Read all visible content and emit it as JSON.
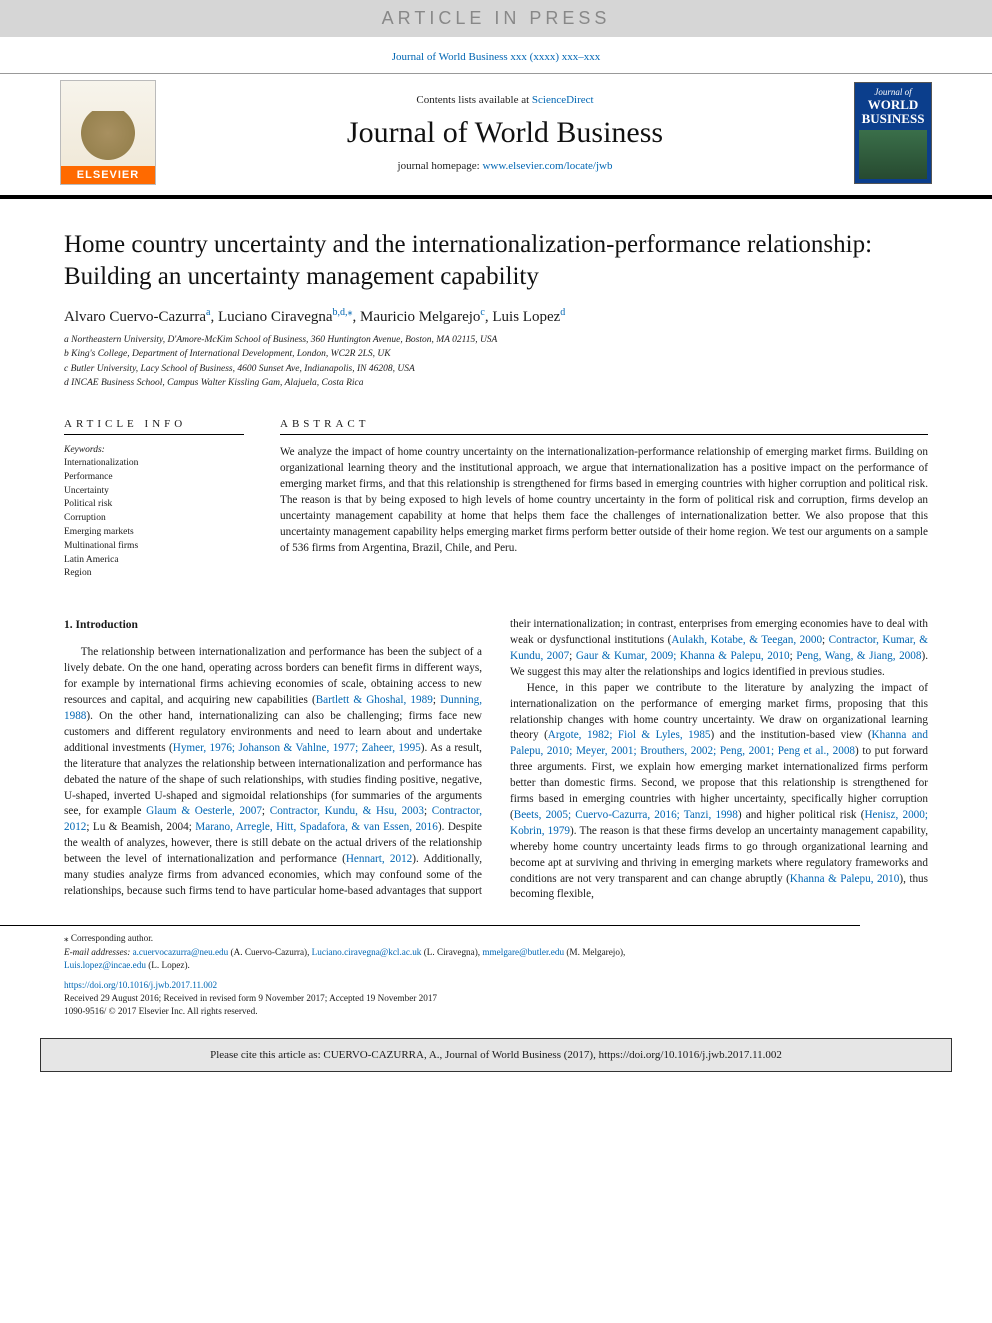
{
  "banner": {
    "article_in_press": "ARTICLE IN PRESS",
    "journal_ref_prefix": "Journal of World Business xxx (xxxx) xxx–xxx"
  },
  "masthead": {
    "contents_prefix": "Contents lists available at ",
    "contents_link": "ScienceDirect",
    "journal_title": "Journal of World Business",
    "homepage_prefix": "journal homepage: ",
    "homepage_url": "www.elsevier.com/locate/jwb",
    "elsevier_label": "ELSEVIER",
    "cover_word1": "Journal of",
    "cover_word2": "WORLD",
    "cover_word3": "BUSINESS"
  },
  "article": {
    "title": "Home country uncertainty and the internationalization-performance relationship: Building an uncertainty management capability",
    "authors_html": "Alvaro Cuervo-Cazurra",
    "author1": {
      "name": "Alvaro Cuervo-Cazurra",
      "aff": "a"
    },
    "author2": {
      "name": "Luciano Ciravegna",
      "aff": "b,d,",
      "corr": "⁎"
    },
    "author3": {
      "name": "Mauricio Melgarejo",
      "aff": "c"
    },
    "author4": {
      "name": "Luis Lopez",
      "aff": "d"
    },
    "affiliations": {
      "a": "a Northeastern University, D'Amore-McKim School of Business, 360 Huntington Avenue, Boston, MA 02115, USA",
      "b": "b King's College, Department of International Development, London, WC2R 2LS, UK",
      "c": "c Butler University, Lacy School of Business, 4600 Sunset Ave, Indianapolis, IN 46208, USA",
      "d": "d INCAE Business School, Campus Walter Kissling Gam, Alajuela, Costa Rica"
    }
  },
  "info": {
    "heading": "ARTICLE INFO",
    "keywords_label": "Keywords:",
    "keywords": [
      "Internationalization",
      "Performance",
      "Uncertainty",
      "Political risk",
      "Corruption",
      "Emerging markets",
      "Multinational firms",
      "Latin America",
      "Region"
    ]
  },
  "abstract": {
    "heading": "ABSTRACT",
    "text": "We analyze the impact of home country uncertainty on the internationalization-performance relationship of emerging market firms. Building on organizational learning theory and the institutional approach, we argue that internationalization has a positive impact on the performance of emerging market firms, and that this relationship is strengthened for firms based in emerging countries with higher corruption and political risk. The reason is that by being exposed to high levels of home country uncertainty in the form of political risk and corruption, firms develop an uncertainty management capability at home that helps them face the challenges of internationalization better. We also propose that this uncertainty management capability helps emerging market firms perform better outside of their home region. We test our arguments on a sample of 536 firms from Argentina, Brazil, Chile, and Peru."
  },
  "body": {
    "section1_heading": "1. Introduction",
    "p1a": "The relationship between internationalization and performance has been the subject of a lively debate. On the one hand, operating across borders can benefit firms in different ways, for example by international firms achieving economies of scale, obtaining access to new resources and capital, and acquiring new capabilities (",
    "p1_ref1": "Bartlett & Ghoshal, 1989",
    "p1_ref1b": "; ",
    "p1_ref2": "Dunning, 1988",
    "p1b": "). On the other hand, internationalizing can also be challenging; firms face new customers and different regulatory environments and need to learn about and undertake additional investments (",
    "p1_ref3": "Hymer, 1976; Johanson & Vahlne, 1977; Zaheer, 1995",
    "p1c": "). As a result, the literature that analyzes the relationship between internationalization and performance has debated the nature of the shape of such relationships, with studies finding positive, negative, U-shaped, inverted U-shaped and sigmoidal relationships (for summaries of the arguments see, for example ",
    "p1_ref4": "Glaum & Oesterle, 2007",
    "p1d": "; ",
    "p1_ref5": "Contractor, Kundu, & Hsu, 2003",
    "p1e": "; ",
    "p1_ref6": "Contractor, 2012",
    "p1f": "; Lu & Beamish, 2004; ",
    "p1_ref7": "Marano, Arregle, Hitt, Spadafora, & van Essen, 2016",
    "p1g": "). Despite the wealth of analyzes, however, there is still debate on the actual drivers of the relationship between the level of internationalization and performance (",
    "p1_ref8": "Hennart, 2012",
    "p1h": "). Additionally, many studies analyze firms from advanced economies, which may confound some of the relationships, because such firms tend to have particular home-based advantages that ",
    "p2a": "support their internationalization; in contrast, enterprises from emerging economies have to deal with weak or dysfunctional institutions (",
    "p2_ref1": "Aulakh, Kotabe, & Teegan, 2000",
    "p2b": "; ",
    "p2_ref2": "Contractor, Kumar, & Kundu, 2007",
    "p2c": "; ",
    "p2_ref3": "Gaur & Kumar, 2009; Khanna & Palepu, 2010",
    "p2d": "; ",
    "p2_ref4": "Peng, Wang, & Jiang, 2008",
    "p2e": "). We suggest this may alter the relationships and logics identified in previous studies.",
    "p3a": "Hence, in this paper we contribute to the literature by analyzing the impact of internationalization on the performance of emerging market firms, proposing that this relationship changes with home country uncertainty. We draw on organizational learning theory (",
    "p3_ref1": "Argote, 1982; Fiol & Lyles, 1985",
    "p3b": ") and the institution-based view (",
    "p3_ref2": "Khanna and Palepu, 2010; Meyer, 2001; Brouthers, 2002; Peng, 2001; Peng et al., 2008",
    "p3c": ") to put forward three arguments. First, we explain how emerging market internationalized firms perform better than domestic firms. Second, we propose that this relationship is strengthened for firms based in emerging countries with higher uncertainty, specifically higher corruption (",
    "p3_ref3": "Beets, 2005; Cuervo-Cazurra, 2016; Tanzi, 1998",
    "p3d": ") and higher political risk (",
    "p3_ref4": "Henisz, 2000; Kobrin, 1979",
    "p3e": "). The reason is that these firms develop an uncertainty management capability, whereby home country uncertainty leads firms to go through organizational learning and become apt at surviving and thriving in emerging markets where regulatory frameworks and conditions are not very transparent and can change abruptly (",
    "p3_ref5": "Khanna & Palepu, 2010",
    "p3f": "), thus becoming flexible,"
  },
  "footnotes": {
    "corr": "⁎ Corresponding author.",
    "email_label": "E-mail addresses: ",
    "e1": "a.cuervocazurra@neu.edu",
    "e1_who": " (A. Cuervo-Cazurra), ",
    "e2": "Luciano.ciravegna@kcl.ac.uk",
    "e2_who": " (L. Ciravegna), ",
    "e3": "mmelgare@butler.edu",
    "e3_who": " (M. Melgarejo), ",
    "e4": "Luis.lopez@incae.edu",
    "e4_who": " (L. Lopez)."
  },
  "doi": {
    "url": "https://doi.org/10.1016/j.jwb.2017.11.002",
    "history": "Received 29 August 2016; Received in revised form 9 November 2017; Accepted 19 November 2017",
    "copyright": "1090-9516/ © 2017 Elsevier Inc. All rights reserved."
  },
  "citation": {
    "text": "Please cite this article as: CUERVO-CAZURRA, A., Journal of World Business (2017), https://doi.org/10.1016/j.jwb.2017.11.002"
  },
  "colors": {
    "link": "#0066b3",
    "banner_bg": "#d6d6d6",
    "banner_text": "#888888",
    "elsevier_orange": "#ff6a00",
    "cover_blue": "#0b3e8c",
    "citebox_bg": "#e6e6e6"
  }
}
